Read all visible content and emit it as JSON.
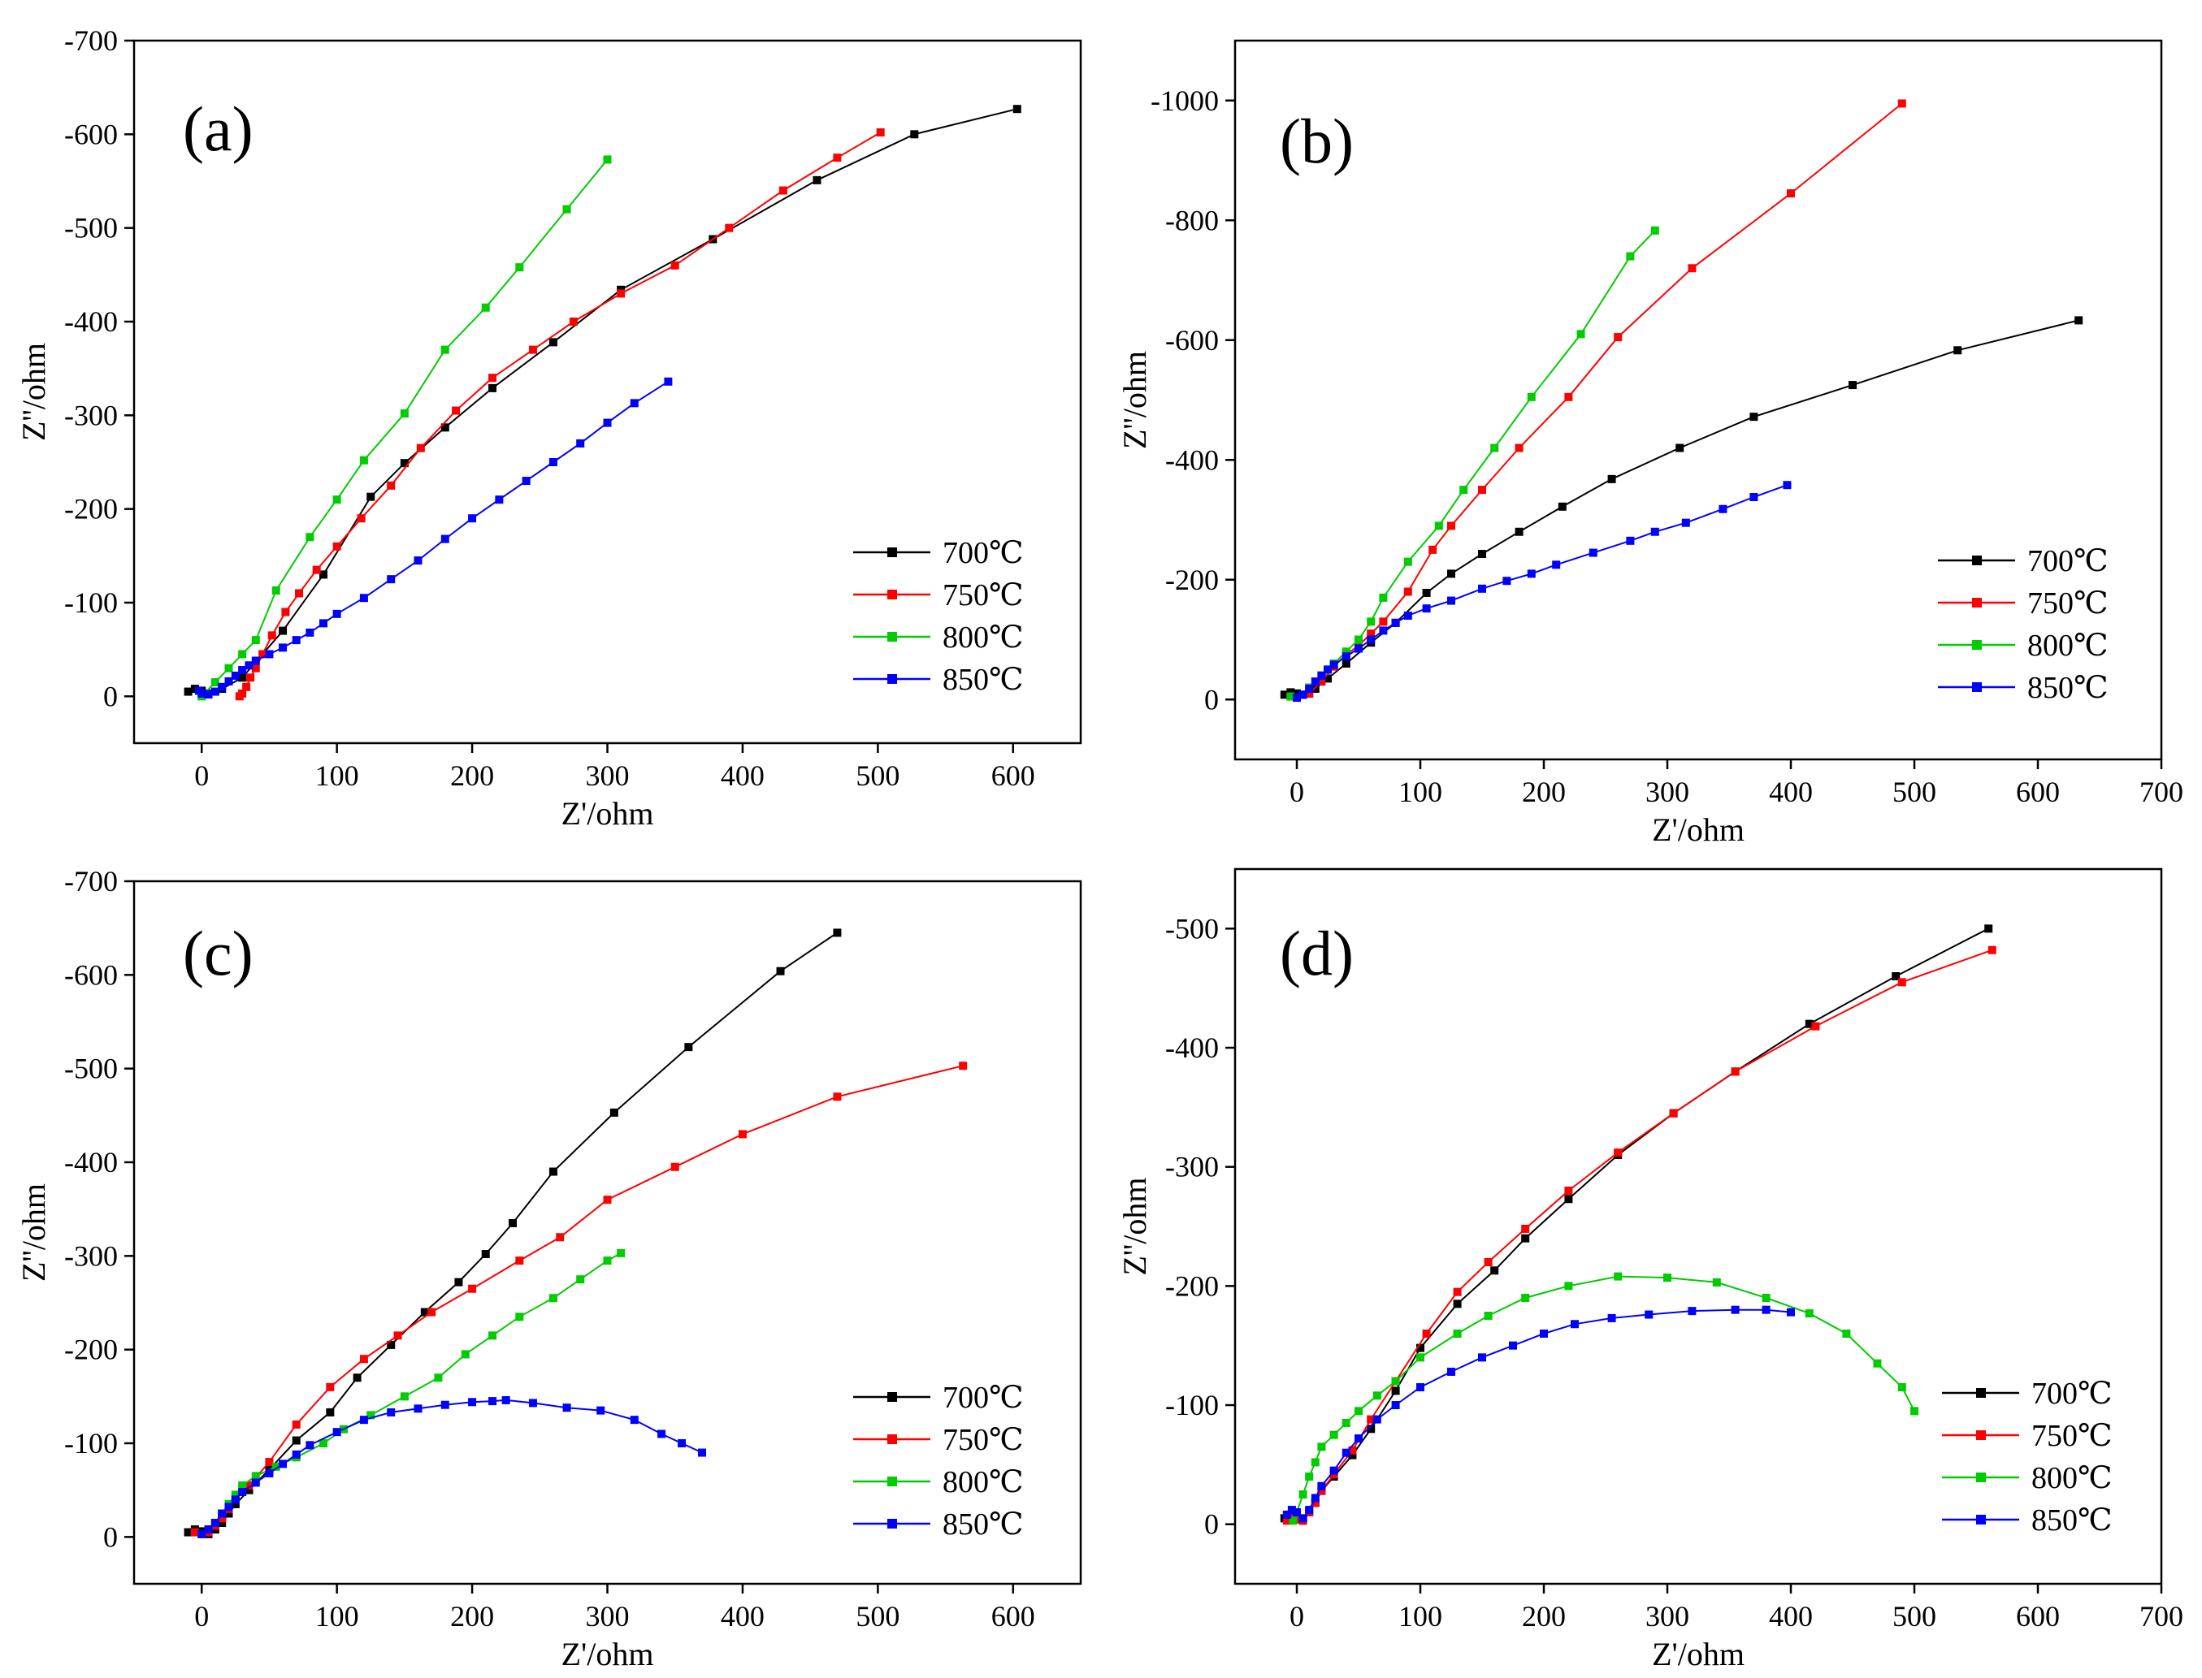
{
  "figure": {
    "legend_entries": [
      "700℃",
      "750℃",
      "800℃",
      "850℃"
    ],
    "colors": {
      "700℃": "#000000",
      "750℃": "#ff0000",
      "800℃": "#00cc00",
      "850℃": "#0000ff"
    }
  },
  "chart_data": [
    {
      "type": "line",
      "panel": "(a)",
      "xlabel": "Z'/ohm",
      "ylabel": "Z''/ohm",
      "xlim": [
        -50,
        650
      ],
      "ylim": [
        0,
        -700
      ],
      "ylim_display": [
        50,
        -700
      ],
      "xticks": [
        0,
        100,
        200,
        300,
        400,
        500,
        600
      ],
      "yticks": [
        0,
        -100,
        -200,
        -300,
        -400,
        -500,
        -600,
        -700
      ],
      "grid": false,
      "legend_position": "lower-right",
      "series": [
        {
          "name": "700℃",
          "x": [
            -10,
            -5,
            0,
            5,
            15,
            30,
            60,
            90,
            125,
            150,
            180,
            215,
            260,
            310,
            378,
            455,
            527,
            603
          ],
          "y": [
            -5,
            -8,
            -6,
            -3,
            -8,
            -20,
            -70,
            -130,
            -213,
            -249,
            -287,
            -329,
            -378,
            -434,
            -488,
            -551,
            -600,
            -627
          ]
        },
        {
          "name": "750℃",
          "x": [
            28,
            30,
            33,
            36,
            40,
            45,
            52,
            62,
            72,
            85,
            100,
            118,
            140,
            162,
            188,
            215,
            245,
            275,
            310,
            350,
            390,
            430,
            470,
            502
          ],
          "y": [
            0,
            -3,
            -10,
            -20,
            -30,
            -45,
            -65,
            -90,
            -110,
            -135,
            -160,
            -190,
            -225,
            -265,
            -305,
            -340,
            -370,
            -400,
            -430,
            -460,
            -500,
            -540,
            -575,
            -602
          ]
        },
        {
          "name": "800℃",
          "x": [
            0,
            10,
            20,
            30,
            40,
            55,
            80,
            100,
            120,
            150,
            180,
            210,
            235,
            270,
            300
          ],
          "y": [
            0,
            -15,
            -30,
            -45,
            -60,
            -113,
            -170,
            -210,
            -252,
            -302,
            -370,
            -415,
            -458,
            -520,
            -573
          ]
        },
        {
          "name": "850℃",
          "x": [
            -2,
            0,
            5,
            10,
            15,
            20,
            25,
            30,
            35,
            40,
            50,
            60,
            70,
            80,
            90,
            100,
            120,
            140,
            160,
            180,
            200,
            220,
            240,
            260,
            280,
            300,
            320,
            345
          ],
          "y": [
            -6,
            -3,
            -2,
            -5,
            -10,
            -16,
            -22,
            -28,
            -33,
            -38,
            -45,
            -52,
            -60,
            -68,
            -78,
            -88,
            -105,
            -125,
            -145,
            -168,
            -190,
            -210,
            -230,
            -250,
            -270,
            -292,
            -313,
            -336
          ]
        }
      ]
    },
    {
      "type": "line",
      "panel": "(b)",
      "xlabel": "Z'/ohm",
      "ylabel": "Z''/ohm",
      "xlim": [
        -50,
        700
      ],
      "ylim": [
        0,
        -1000
      ],
      "ylim_display": [
        100,
        -1100
      ],
      "xticks": [
        0,
        100,
        200,
        300,
        400,
        500,
        600,
        700
      ],
      "yticks": [
        0,
        -200,
        -400,
        -600,
        -800,
        -1000
      ],
      "grid": false,
      "legend_position": "lower-right",
      "series": [
        {
          "name": "700℃",
          "x": [
            -10,
            -5,
            0,
            5,
            10,
            15,
            25,
            40,
            60,
            80,
            105,
            125,
            150,
            180,
            215,
            255,
            310,
            370,
            450,
            535,
            633
          ],
          "y": [
            -8,
            -12,
            -10,
            -8,
            -10,
            -18,
            -35,
            -60,
            -95,
            -128,
            -178,
            -210,
            -243,
            -280,
            -322,
            -368,
            -420,
            -472,
            -525,
            -583,
            -633
          ]
        },
        {
          "name": "750℃",
          "x": [
            -5,
            0,
            10,
            20,
            30,
            40,
            50,
            60,
            70,
            90,
            110,
            125,
            150,
            180,
            220,
            260,
            320,
            400,
            490
          ],
          "y": [
            -5,
            -3,
            -10,
            -30,
            -55,
            -75,
            -90,
            -110,
            -130,
            -180,
            -250,
            -290,
            -350,
            -420,
            -505,
            -605,
            -720,
            -845,
            -995
          ]
        },
        {
          "name": "800℃",
          "x": [
            -5,
            0,
            10,
            20,
            30,
            40,
            50,
            60,
            70,
            90,
            115,
            135,
            160,
            190,
            230,
            270,
            290
          ],
          "y": [
            -5,
            -3,
            -20,
            -40,
            -60,
            -80,
            -100,
            -130,
            -170,
            -230,
            -290,
            -350,
            -420,
            -505,
            -610,
            -740,
            -783
          ]
        },
        {
          "name": "850℃",
          "x": [
            0,
            5,
            10,
            15,
            20,
            25,
            30,
            40,
            50,
            60,
            70,
            80,
            90,
            105,
            125,
            150,
            170,
            190,
            210,
            240,
            270,
            290,
            315,
            345,
            370,
            397
          ],
          "y": [
            -3,
            -8,
            -18,
            -30,
            -40,
            -50,
            -58,
            -72,
            -85,
            -100,
            -115,
            -128,
            -140,
            -152,
            -165,
            -185,
            -198,
            -210,
            -225,
            -245,
            -265,
            -280,
            -295,
            -318,
            -338,
            -358
          ]
        }
      ]
    },
    {
      "type": "line",
      "panel": "(c)",
      "xlabel": "Z'/ohm",
      "ylabel": "Z''/ohm",
      "xlim": [
        -50,
        650
      ],
      "ylim": [
        0,
        -700
      ],
      "ylim_display": [
        50,
        -700
      ],
      "xticks": [
        0,
        100,
        200,
        300,
        400,
        500,
        600
      ],
      "yticks": [
        0,
        -100,
        -200,
        -300,
        -400,
        -500,
        -600,
        -700
      ],
      "grid": false,
      "legend_position": "lower-right",
      "series": [
        {
          "name": "700℃",
          "x": [
            -10,
            -5,
            0,
            5,
            10,
            15,
            20,
            25,
            35,
            50,
            70,
            95,
            115,
            140,
            165,
            190,
            210,
            230,
            260,
            305,
            360,
            428,
            470
          ],
          "y": [
            -5,
            -8,
            -6,
            -3,
            -8,
            -15,
            -25,
            -35,
            -50,
            -72,
            -103,
            -133,
            -170,
            -205,
            -240,
            -272,
            -302,
            -335,
            -390,
            -453,
            -523,
            -604,
            -645
          ]
        },
        {
          "name": "750℃",
          "x": [
            -5,
            0,
            5,
            10,
            15,
            20,
            25,
            35,
            50,
            70,
            95,
            120,
            145,
            170,
            200,
            235,
            265,
            300,
            350,
            400,
            470,
            563
          ],
          "y": [
            -5,
            -3,
            -5,
            -12,
            -20,
            -30,
            -40,
            -55,
            -80,
            -120,
            -160,
            -190,
            -215,
            -240,
            -265,
            -295,
            -320,
            -360,
            -395,
            -430,
            -470,
            -503
          ]
        },
        {
          "name": "800℃",
          "x": [
            0,
            5,
            10,
            15,
            20,
            25,
            30,
            40,
            55,
            70,
            90,
            105,
            125,
            150,
            175,
            195,
            215,
            235,
            260,
            280,
            300,
            310
          ],
          "y": [
            -3,
            -8,
            -15,
            -25,
            -35,
            -45,
            -55,
            -65,
            -75,
            -85,
            -100,
            -115,
            -130,
            -150,
            -170,
            -195,
            -215,
            -235,
            -255,
            -275,
            -295,
            -303
          ]
        },
        {
          "name": "850℃",
          "x": [
            0,
            5,
            10,
            15,
            20,
            25,
            30,
            40,
            50,
            60,
            70,
            80,
            100,
            120,
            140,
            160,
            180,
            200,
            215,
            225,
            245,
            270,
            295,
            320,
            340,
            355,
            370
          ],
          "y": [
            -3,
            -8,
            -15,
            -25,
            -32,
            -40,
            -48,
            -58,
            -68,
            -78,
            -88,
            -98,
            -112,
            -125,
            -133,
            -137,
            -141,
            -144,
            -145,
            -146,
            -143,
            -138,
            -135,
            -125,
            -110,
            -100,
            -90
          ]
        }
      ]
    },
    {
      "type": "line",
      "panel": "(d)",
      "xlabel": "Z'/ohm",
      "ylabel": "Z''/ohm",
      "xlim": [
        -50,
        700
      ],
      "ylim": [
        0,
        -500
      ],
      "ylim_display": [
        50,
        -550
      ],
      "xticks": [
        0,
        100,
        200,
        300,
        400,
        500,
        600,
        700
      ],
      "yticks": [
        0,
        -100,
        -200,
        -300,
        -400,
        -500
      ],
      "grid": false,
      "legend_position": "lower-right",
      "series": [
        {
          "name": "700℃",
          "x": [
            -10,
            -5,
            0,
            5,
            10,
            15,
            20,
            30,
            45,
            60,
            80,
            100,
            130,
            160,
            185,
            220,
            260,
            305,
            355,
            415,
            485,
            560
          ],
          "y": [
            -5,
            -8,
            -5,
            -3,
            -10,
            -18,
            -28,
            -40,
            -58,
            -80,
            -112,
            -148,
            -185,
            -213,
            -240,
            -273,
            -310,
            -345,
            -380,
            -420,
            -460,
            -500
          ]
        },
        {
          "name": "750℃",
          "x": [
            -8,
            -4,
            0,
            5,
            10,
            15,
            20,
            30,
            45,
            60,
            80,
            105,
            130,
            155,
            185,
            220,
            260,
            305,
            355,
            420,
            490,
            563
          ],
          "y": [
            -3,
            -6,
            -4,
            -3,
            -10,
            -18,
            -28,
            -42,
            -62,
            -88,
            -120,
            -160,
            -195,
            -220,
            -248,
            -280,
            -312,
            -345,
            -380,
            -418,
            -455,
            -482
          ]
        },
        {
          "name": "800℃",
          "x": [
            -3,
            0,
            5,
            10,
            15,
            20,
            30,
            40,
            50,
            65,
            80,
            100,
            130,
            155,
            185,
            220,
            260,
            300,
            340,
            380,
            415,
            445,
            470,
            490,
            500
          ],
          "y": [
            -3,
            -10,
            -25,
            -40,
            -52,
            -65,
            -75,
            -85,
            -95,
            -108,
            -120,
            -140,
            -160,
            -175,
            -190,
            -200,
            -208,
            -207,
            -203,
            -190,
            -177,
            -160,
            -135,
            -115,
            -95
          ]
        },
        {
          "name": "850℃",
          "x": [
            -8,
            -4,
            0,
            5,
            10,
            15,
            20,
            30,
            40,
            50,
            65,
            80,
            100,
            125,
            150,
            175,
            200,
            225,
            255,
            285,
            320,
            355,
            380,
            400
          ],
          "y": [
            -8,
            -12,
            -10,
            -5,
            -12,
            -22,
            -32,
            -45,
            -60,
            -72,
            -88,
            -100,
            -115,
            -128,
            -140,
            -150,
            -160,
            -168,
            -173,
            -176,
            -179,
            -180,
            -180,
            -178
          ]
        }
      ]
    }
  ]
}
